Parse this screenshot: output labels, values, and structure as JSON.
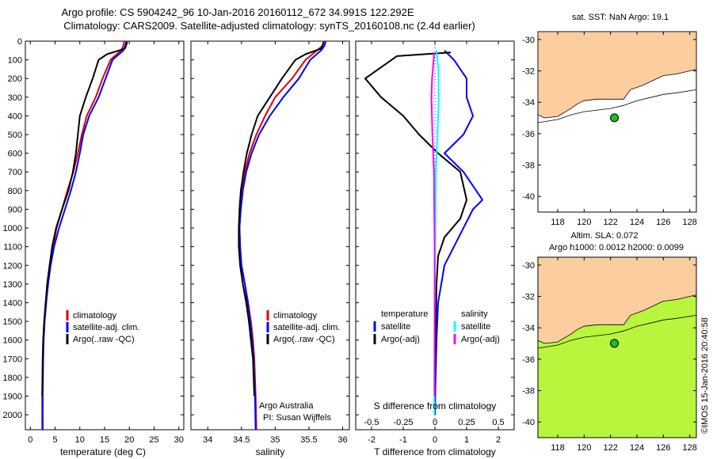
{
  "title": {
    "line1": "Argo profile: CS 5904242_96 10-Jan-2016 20160112_672 34.991S 122.292E",
    "line2": "Climatology: CARS2009. Satellite-adjusted climatology: synTS_20160108.nc (2.4d earlier)"
  },
  "colors": {
    "climatology": "#dd0000",
    "satellite": "#0000ff",
    "argo": "#000000",
    "argo_s_adj": "#ff00ff",
    "satellite_s": "#00ffff",
    "land": "#fbcd9f",
    "sla_low": "#00b490",
    "sla_high": "#b9f53d",
    "float_marker": "#22bb22"
  },
  "panels": {
    "temperature": {
      "xlabel": "temperature (deg C)",
      "legend": [
        "climatology",
        "satellite-adj. clim.",
        "Argo(..raw -QC)"
      ]
    },
    "salinity": {
      "xlabel": "salinity",
      "legend": [
        "climatology",
        "satellite-adj. clim.",
        "Argo(..raw -QC)"
      ],
      "note1": "Argo Australia",
      "note2": "PI: Susan Wijffels"
    },
    "difference": {
      "xlabel": "T difference from climatology",
      "xlabel_top": "S difference from climatology",
      "legend_t_head": "temperature",
      "legend_t": [
        "satellite",
        "Argo(-adj)"
      ],
      "legend_s_head": "salinity",
      "legend_s": [
        "satellite",
        "Argo(-adj)"
      ]
    },
    "map_top": {
      "title": "sat. SST: NaN Argo: 19.1"
    },
    "map_bottom": {
      "title1": "Altim. SLA: 0.072",
      "title2": "Argo h1000: 0.0012 h2000: 0.0099"
    },
    "timestamp": "©IMOS 15-Jan-2016 20:40:58"
  },
  "chart_data": [
    {
      "type": "line",
      "title": "",
      "xlabel": "temperature (deg C)",
      "ylabel": "",
      "xlim": [
        -1,
        31
      ],
      "ylim": [
        2080,
        0
      ],
      "xticks": [
        0,
        5,
        10,
        15,
        20,
        25,
        30
      ],
      "yticks": [
        0,
        100,
        200,
        300,
        400,
        500,
        600,
        700,
        800,
        900,
        1000,
        1100,
        1200,
        1300,
        1400,
        1500,
        1600,
        1700,
        1800,
        1900,
        2000
      ],
      "series": [
        {
          "name": "climatology",
          "color": "#dd0000",
          "x": [
            19.0,
            18.8,
            18.3,
            16.2,
            14.6,
            13.2,
            11.4,
            10.4,
            9.6,
            8.7,
            7.5,
            6.4,
            5.3,
            4.6,
            4.0,
            3.5,
            3.2,
            2.8,
            2.6,
            2.5,
            2.4,
            2.4
          ],
          "y": [
            0,
            25,
            50,
            100,
            200,
            300,
            400,
            500,
            600,
            700,
            800,
            900,
            1000,
            1100,
            1200,
            1300,
            1400,
            1500,
            1600,
            1700,
            1900,
            2080
          ]
        },
        {
          "name": "satellite-adj. clim.",
          "color": "#0000ff",
          "x": [
            19.4,
            19.2,
            18.8,
            16.6,
            15.2,
            13.8,
            11.9,
            10.7,
            10.0,
            9.2,
            8.2,
            7.0,
            5.8,
            4.8,
            4.1,
            3.6,
            3.2,
            2.9,
            2.7,
            2.6,
            2.5,
            2.5
          ],
          "y": [
            0,
            25,
            50,
            100,
            200,
            300,
            400,
            500,
            600,
            700,
            800,
            900,
            1000,
            1100,
            1200,
            1300,
            1400,
            1500,
            1600,
            1700,
            1900,
            2080
          ]
        },
        {
          "name": "Argo(..raw -QC)",
          "color": "#000000",
          "x": [
            19.6,
            19.1,
            15.5,
            13.8,
            12.6,
            11.2,
            10.0,
            9.6,
            9.2,
            8.6,
            7.7,
            6.4,
            5.2,
            4.4,
            3.9,
            3.4,
            3.1,
            2.8,
            2.6,
            2.5,
            2.4
          ],
          "y": [
            5,
            40,
            70,
            100,
            200,
            300,
            400,
            500,
            600,
            700,
            800,
            900,
            1000,
            1100,
            1200,
            1300,
            1400,
            1500,
            1600,
            1700,
            1900
          ]
        }
      ]
    },
    {
      "type": "line",
      "title": "",
      "xlabel": "salinity",
      "ylabel": "",
      "xlim": [
        33.75,
        36.1
      ],
      "ylim": [
        2080,
        0
      ],
      "xticks": [
        34,
        34.5,
        35,
        35.5,
        36
      ],
      "series": [
        {
          "name": "climatology",
          "color": "#dd0000",
          "x": [
            35.72,
            35.7,
            35.62,
            35.45,
            35.25,
            35.0,
            34.85,
            34.72,
            34.62,
            34.55,
            34.5,
            34.48,
            34.47,
            34.48,
            34.5,
            34.55,
            34.6,
            34.64,
            34.67,
            34.69,
            34.71,
            34.72
          ],
          "y": [
            0,
            25,
            50,
            100,
            200,
            300,
            400,
            500,
            600,
            700,
            800,
            900,
            1000,
            1100,
            1200,
            1300,
            1400,
            1500,
            1600,
            1700,
            1900,
            2080
          ]
        },
        {
          "name": "satellite-adj. clim.",
          "color": "#0000ff",
          "x": [
            35.75,
            35.73,
            35.68,
            35.52,
            35.35,
            35.12,
            34.92,
            34.76,
            34.65,
            34.57,
            34.52,
            34.49,
            34.47,
            34.48,
            34.5,
            34.55,
            34.59,
            34.63,
            34.66,
            34.68,
            34.7,
            34.71
          ],
          "y": [
            0,
            25,
            50,
            100,
            200,
            300,
            400,
            500,
            600,
            700,
            800,
            900,
            1000,
            1100,
            1200,
            1300,
            1400,
            1500,
            1600,
            1700,
            1900,
            2080
          ]
        },
        {
          "name": "Argo(..raw -QC)",
          "color": "#000000",
          "x": [
            35.72,
            35.68,
            35.45,
            35.3,
            35.1,
            34.92,
            34.74,
            34.65,
            34.58,
            34.53,
            34.49,
            34.47,
            34.46,
            34.46,
            34.48,
            34.52,
            34.57,
            34.61,
            34.64,
            34.67,
            34.69
          ],
          "y": [
            5,
            40,
            70,
            100,
            200,
            300,
            400,
            500,
            600,
            700,
            800,
            900,
            1000,
            1100,
            1200,
            1300,
            1400,
            1500,
            1600,
            1700,
            1900
          ]
        }
      ]
    },
    {
      "type": "line",
      "title": "",
      "xlabel": "T difference from climatology",
      "xlabel_top": "S difference from climatology",
      "xlim": [
        -2.5,
        2.5
      ],
      "ylim": [
        2080,
        0
      ],
      "xticks": [
        -2,
        -1,
        0,
        1,
        2
      ],
      "xticks_top": [
        "-0.5",
        "-0.25",
        "0",
        "0.25",
        "0.5"
      ],
      "series": [
        {
          "name": "temperature satellite",
          "color": "#0000ff",
          "x": [
            0.3,
            0.6,
            1.0,
            1.0,
            1.2,
            0.9,
            0.3,
            0.9,
            1.5,
            1.2,
            0.9,
            0.6,
            0.3,
            0.1,
            0.05,
            0.02,
            0.0
          ],
          "y": [
            50,
            100,
            200,
            300,
            400,
            500,
            600,
            700,
            850,
            900,
            1000,
            1100,
            1200,
            1400,
            1600,
            1800,
            2000
          ]
        },
        {
          "name": "temperature Argo(-adj)",
          "color": "#000000",
          "x": [
            0.5,
            -1.2,
            -2.2,
            -1.7,
            -1.0,
            -0.5,
            0.1,
            0.8,
            1.0,
            0.8,
            0.3,
            0.1,
            0.05,
            0.02,
            0.0
          ],
          "y": [
            60,
            80,
            200,
            300,
            400,
            500,
            600,
            700,
            850,
            950,
            1050,
            1150,
            1300,
            1600,
            1900
          ]
        },
        {
          "name": "salinity satellite",
          "color": "#00ffff",
          "x": [
            0.05,
            0.11,
            0.12,
            0.08,
            0.03,
            0.02,
            0.01,
            0.0,
            -0.01,
            -0.02,
            -0.02
          ],
          "y": [
            50,
            150,
            300,
            500,
            700,
            900,
            1100,
            1300,
            1500,
            1700,
            2000
          ]
        },
        {
          "name": "salinity Argo(-adj)",
          "color": "#ff00ff",
          "x": [
            -0.02,
            -0.09,
            -0.11,
            -0.08,
            -0.03,
            -0.02,
            -0.01,
            -0.01,
            -0.01
          ],
          "y": [
            60,
            200,
            300,
            500,
            700,
            900,
            1100,
            1400,
            1900
          ]
        }
      ]
    }
  ],
  "maps": {
    "lon_ticks": [
      118,
      120,
      122,
      124,
      126,
      128
    ],
    "lat_ticks": [
      -30,
      -32,
      -34,
      -36,
      -38,
      -40
    ],
    "lon_range": [
      116.5,
      128.5
    ],
    "lat_range": [
      -29.5,
      -41
    ],
    "float_position": {
      "lon": 122.292,
      "lat": -34.991
    },
    "coast": [
      [
        116.5,
        -34.8
      ],
      [
        117.0,
        -35.0
      ],
      [
        118.0,
        -34.9
      ],
      [
        119.0,
        -34.4
      ],
      [
        119.5,
        -34.1
      ],
      [
        120.0,
        -33.9
      ],
      [
        121.0,
        -33.8
      ],
      [
        122.0,
        -33.8
      ],
      [
        123.0,
        -33.8
      ],
      [
        123.5,
        -33.2
      ],
      [
        124.5,
        -32.9
      ],
      [
        126.0,
        -32.3
      ],
      [
        127.0,
        -32.2
      ],
      [
        128.5,
        -31.9
      ]
    ],
    "isobath": [
      [
        116.5,
        -35.3
      ],
      [
        118.0,
        -35.1
      ],
      [
        119.0,
        -34.8
      ],
      [
        120.0,
        -34.6
      ],
      [
        121.0,
        -34.5
      ],
      [
        122.0,
        -34.4
      ],
      [
        123.0,
        -34.2
      ],
      [
        124.0,
        -33.9
      ],
      [
        125.0,
        -33.7
      ],
      [
        126.0,
        -33.5
      ],
      [
        127.0,
        -33.4
      ],
      [
        128.5,
        -33.2
      ]
    ]
  }
}
